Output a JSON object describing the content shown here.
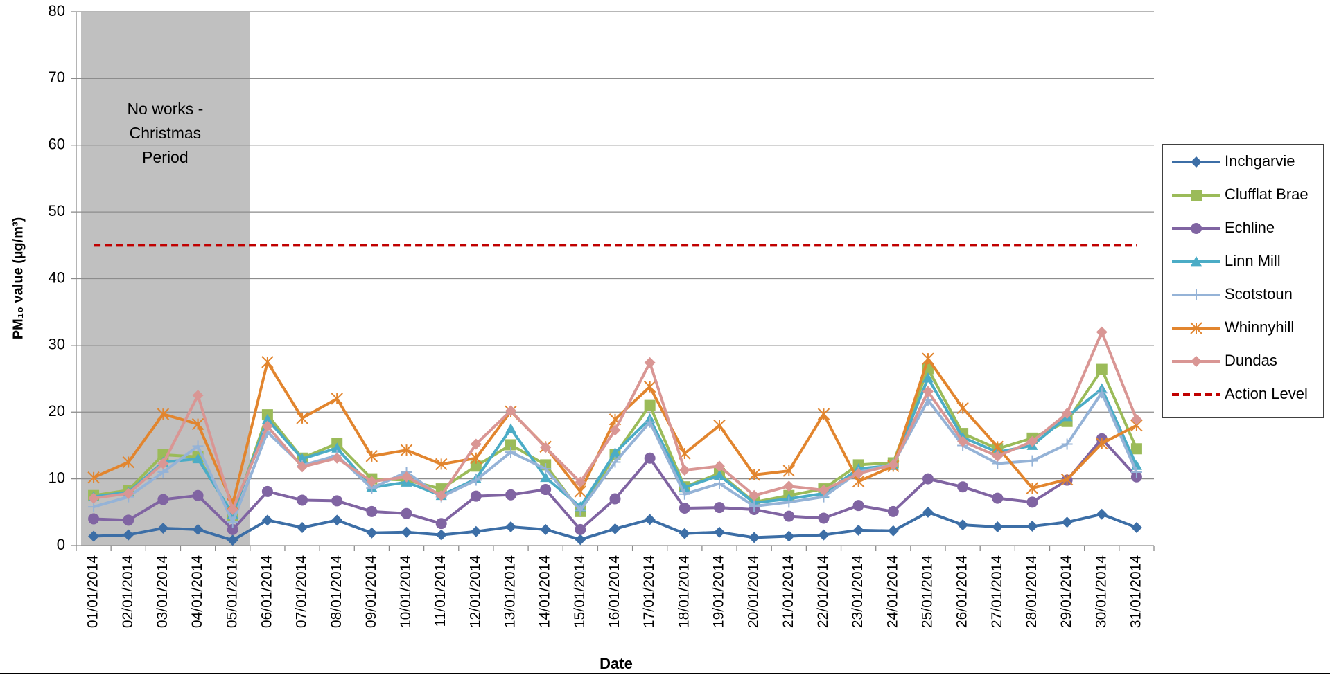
{
  "chart_data": {
    "type": "line",
    "x_label": "Date",
    "y_label": "PM₁₀ value (µg/m³)",
    "categories": [
      "01/01/2014",
      "02/01/2014",
      "03/01/2014",
      "04/01/2014",
      "05/01/2014",
      "06/01/2014",
      "07/01/2014",
      "08/01/2014",
      "09/01/2014",
      "10/01/2014",
      "11/01/2014",
      "12/01/2014",
      "13/01/2014",
      "14/01/2014",
      "15/01/2014",
      "16/01/2014",
      "17/01/2014",
      "18/01/2014",
      "19/01/2014",
      "20/01/2014",
      "21/01/2014",
      "22/01/2014",
      "23/01/2014",
      "24/01/2014",
      "25/01/2014",
      "26/01/2014",
      "27/01/2014",
      "28/01/2014",
      "29/01/2014",
      "30/01/2014",
      "31/01/2014"
    ],
    "ylim": [
      0,
      80
    ],
    "yticks": [
      0,
      10,
      20,
      30,
      40,
      50,
      60,
      70,
      80
    ],
    "grid": true,
    "legend": "right",
    "shaded_period": {
      "start": "01/01/2014",
      "end": "05/01/2014",
      "color": "#c0c0c0",
      "label": [
        "No works -",
        "Christmas",
        "Period"
      ]
    },
    "series": [
      {
        "name": "Inchgarvie",
        "color": "#3c6ea6",
        "marker": "diamond",
        "values": [
          1.4,
          1.6,
          2.6,
          2.4,
          0.8,
          3.8,
          2.7,
          3.8,
          1.9,
          2.0,
          1.6,
          2.1,
          2.8,
          2.4,
          0.9,
          2.5,
          3.9,
          1.8,
          2.0,
          1.2,
          1.4,
          1.6,
          2.3,
          2.2,
          5.0,
          3.1,
          2.8,
          2.9,
          3.5,
          4.7,
          2.7
        ]
      },
      {
        "name": "Clufflat Brae",
        "color": "#9bbb59",
        "marker": "square",
        "values": [
          7.5,
          8.3,
          13.6,
          13.3,
          4.5,
          19.6,
          13.1,
          15.3,
          10.0,
          9.8,
          8.5,
          11.9,
          15.1,
          12.1,
          5.1,
          13.6,
          21.0,
          8.8,
          10.8,
          6.5,
          7.5,
          8.5,
          12.1,
          12.4,
          26.5,
          16.8,
          14.5,
          16.1,
          18.6,
          26.4,
          14.5
        ]
      },
      {
        "name": "Echline",
        "color": "#8064a2",
        "marker": "circle",
        "values": [
          4.0,
          3.8,
          6.9,
          7.5,
          2.4,
          8.1,
          6.8,
          6.7,
          5.1,
          4.8,
          3.3,
          7.4,
          7.6,
          8.4,
          2.4,
          7.0,
          13.1,
          5.6,
          5.7,
          5.4,
          4.4,
          4.1,
          6.0,
          5.1,
          10.0,
          8.8,
          7.1,
          6.5,
          9.8,
          16.0,
          10.3
        ]
      },
      {
        "name": "Linn Mill",
        "color": "#4bacc6",
        "marker": "triangle",
        "values": [
          7.3,
          8.0,
          12.5,
          13.0,
          4.7,
          18.9,
          13.0,
          14.6,
          8.7,
          9.5,
          7.5,
          10.0,
          17.5,
          10.2,
          5.8,
          13.9,
          19.0,
          8.7,
          10.5,
          6.4,
          7.0,
          7.8,
          11.5,
          12.0,
          25.1,
          16.2,
          14.0,
          15.0,
          19.3,
          23.5,
          12.0
        ]
      },
      {
        "name": "Scotstoun",
        "color": "#95b3d7",
        "marker": "plus",
        "values": [
          5.8,
          7.3,
          11.0,
          14.9,
          3.5,
          17.0,
          12.0,
          13.5,
          8.6,
          11.0,
          7.3,
          9.8,
          14.0,
          11.5,
          5.3,
          12.5,
          18.5,
          7.7,
          9.3,
          5.9,
          6.5,
          7.3,
          11.0,
          12.2,
          21.8,
          15.0,
          12.3,
          12.7,
          15.2,
          22.9,
          11.0
        ]
      },
      {
        "name": "Whinnyhill",
        "color": "#e2852e",
        "marker": "star",
        "values": [
          10.2,
          12.5,
          19.7,
          18.2,
          6.2,
          27.5,
          19.1,
          22.0,
          13.4,
          14.3,
          12.2,
          13.1,
          20.1,
          14.8,
          8.1,
          18.9,
          23.8,
          13.8,
          18.0,
          10.6,
          11.2,
          19.7,
          9.6,
          11.9,
          28.0,
          20.6,
          14.8,
          8.6,
          9.9,
          15.3,
          18.0
        ]
      },
      {
        "name": "Dundas",
        "color": "#d99694",
        "marker": "diamond",
        "values": [
          7.1,
          7.8,
          12.3,
          22.5,
          5.4,
          17.9,
          11.8,
          13.1,
          9.6,
          10.3,
          7.5,
          15.2,
          20.2,
          14.7,
          9.5,
          17.3,
          27.4,
          11.3,
          11.9,
          7.5,
          8.9,
          8.3,
          10.8,
          12.1,
          23.1,
          15.6,
          13.4,
          15.6,
          19.8,
          32.0,
          18.9
        ]
      }
    ],
    "reference_line": {
      "name": "Action Level",
      "value": 45,
      "color": "#c00000"
    }
  }
}
